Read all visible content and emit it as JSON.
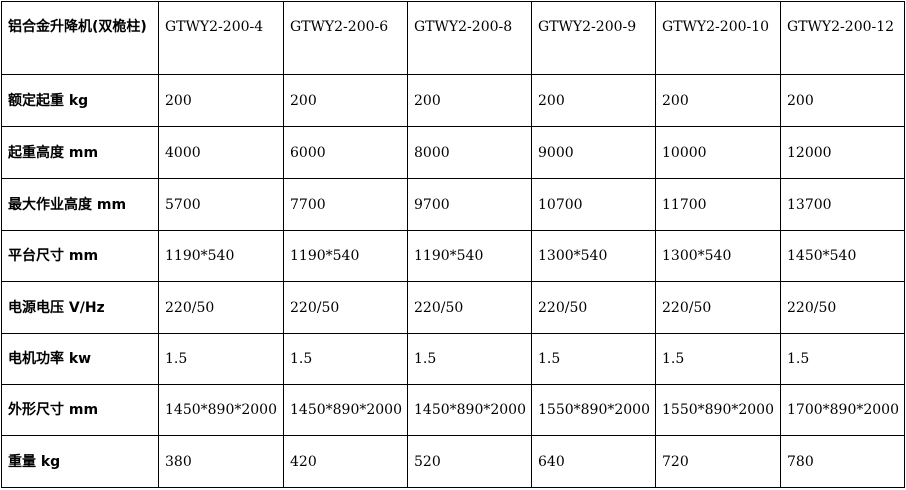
{
  "table": {
    "header": [
      "铝合金升降机(双桅柱)",
      "GTWY2-200-4",
      "GTWY2-200-6",
      "GTWY2-200-8",
      "GTWY2-200-9",
      "GTWY2-200-10",
      "GTWY2-200-12"
    ],
    "rows": [
      [
        "额定起重 kg",
        "200",
        "200",
        "200",
        "200",
        "200",
        "200"
      ],
      [
        "起重高度 mm",
        "4000",
        "6000",
        "8000",
        "9000",
        "10000",
        "12000"
      ],
      [
        "最大作业高度 mm",
        "5700",
        "7700",
        "9700",
        "10700",
        "11700",
        "13700"
      ],
      [
        "平台尺寸 mm",
        "1190*540",
        "1190*540",
        "1190*540",
        "1300*540",
        "1300*540",
        "1450*540"
      ],
      [
        "电源电压 V/Hz",
        "220/50",
        "220/50",
        "220/50",
        "220/50",
        "220/50",
        "220/50"
      ],
      [
        "电机功率 kw",
        "1.5",
        "1.5",
        "1.5",
        "1.5",
        "1.5",
        "1.5"
      ],
      [
        "外形尺寸 mm",
        "1450*890*2000",
        "1450*890*2000",
        "1450*890*2000",
        "1550*890*2000",
        "1550*890*2000",
        "1700*890*2000"
      ],
      [
        "重量 kg",
        "380",
        "420",
        "520",
        "640",
        "720",
        "780"
      ]
    ]
  }
}
